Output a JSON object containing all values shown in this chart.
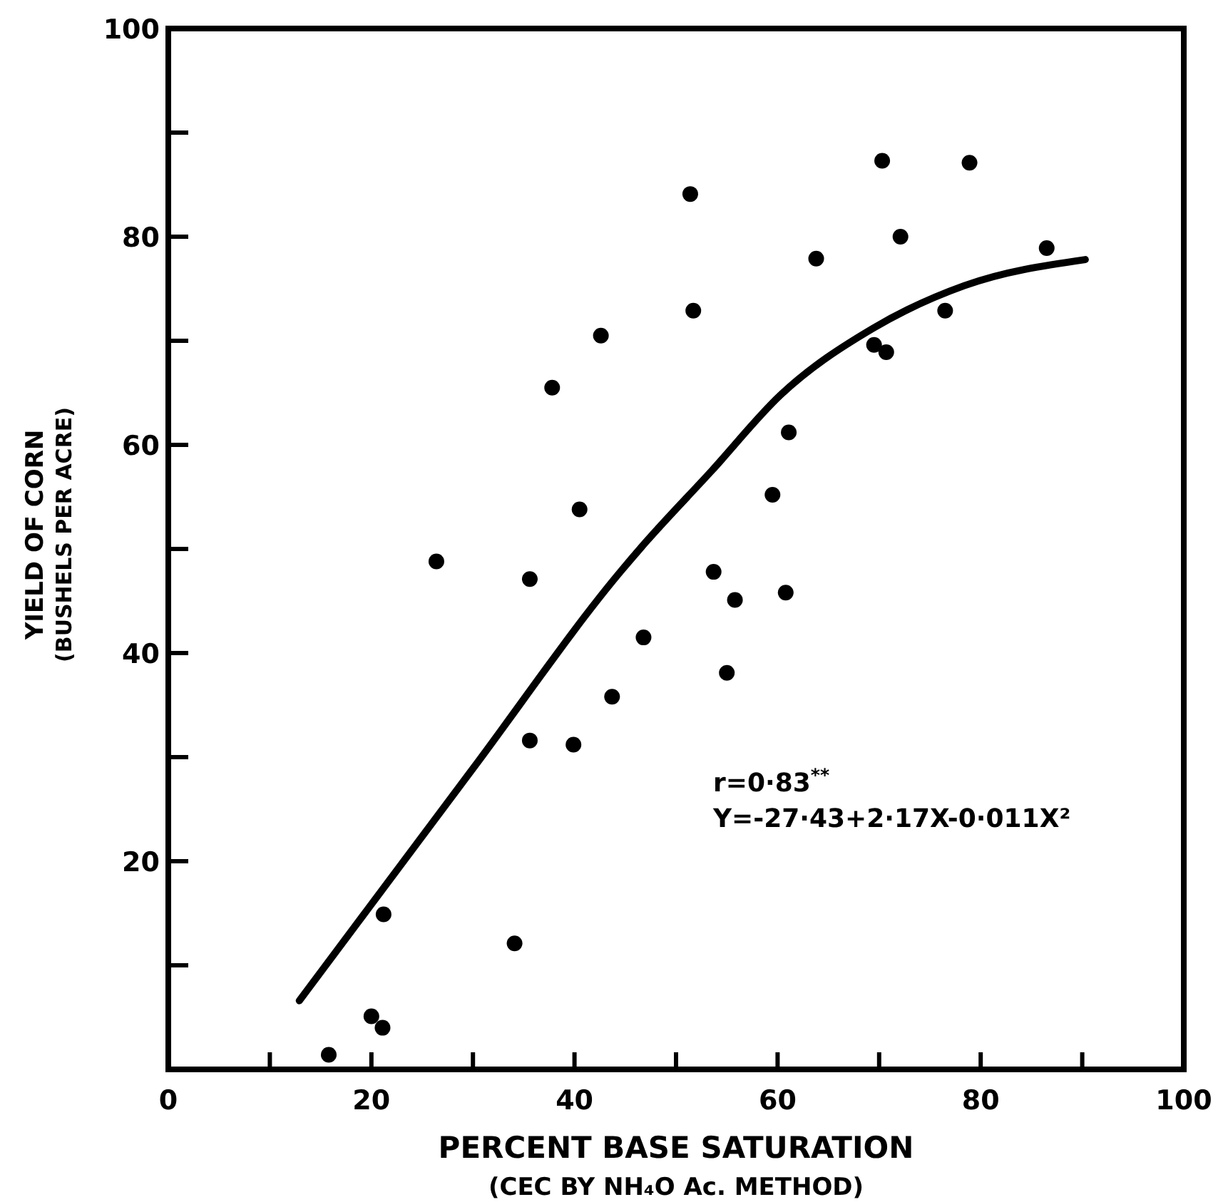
{
  "chart_data": {
    "type": "scatter",
    "xlabel": "PERCENT BASE SATURATION\n(CEC BY NH₄O Ac. METHOD)",
    "ylabel": "YIELD OF CORN\n(BUSHELS PER ACRE)",
    "xlim": [
      0,
      100
    ],
    "ylim": [
      0,
      100
    ],
    "xticks": [
      0,
      {
        "value": 10,
        "label": null
      },
      20,
      {
        "value": 30,
        "label": null
      },
      40,
      {
        "value": 50,
        "label": null
      },
      60,
      {
        "value": 70,
        "label": null
      },
      80,
      {
        "value": 90,
        "label": null
      },
      100
    ],
    "yticks": [
      {
        "value": 0,
        "label": null
      },
      {
        "value": 10,
        "label": null
      },
      20,
      {
        "value": 30,
        "label": null
      },
      40,
      {
        "value": 50,
        "label": null
      },
      60,
      {
        "value": 70,
        "label": null
      },
      80,
      {
        "value": 90,
        "label": null
      },
      100
    ],
    "grid": false,
    "marker": "circle",
    "annotations": [
      "r=0·83$^{**}$",
      "Y=-27·43+2·17X-0·011X²"
    ],
    "series": [
      {
        "color": "#000000",
        "x": [
          15.8,
          20.0,
          21.1,
          21.2,
          34.1,
          35.6,
          39.9,
          43.7,
          46.8,
          35.6,
          26.4,
          40.5,
          37.8,
          42.6,
          51.4,
          51.7,
          70.3,
          78.9,
          72.1,
          63.8,
          86.5,
          76.5,
          69.5,
          70.7,
          61.1,
          59.5,
          53.7,
          60.8,
          55.8,
          55.0
        ],
        "values": [
          1.4,
          5.1,
          4.0,
          14.9,
          12.1,
          31.6,
          31.2,
          35.8,
          41.5,
          47.1,
          48.8,
          53.8,
          65.5,
          70.5,
          84.1,
          72.9,
          87.3,
          87.1,
          80.0,
          77.9,
          78.9,
          72.9,
          69.6,
          68.9,
          61.2,
          55.2,
          47.8,
          45.8,
          45.1,
          38.1
        ]
      },
      {
        "type": "line",
        "color": "#000000",
        "marker": "none",
        "line_style": "solid",
        "x": [
          12.9,
          30,
          44.6,
          46.7,
          53.5,
          60.3,
          69.4,
          78.4,
          90.3
        ],
        "values": [
          6.6,
          28.9,
          47.9,
          50.3,
          57.5,
          64.8,
          71.2,
          75.3,
          77.8
        ]
      }
    ]
  }
}
